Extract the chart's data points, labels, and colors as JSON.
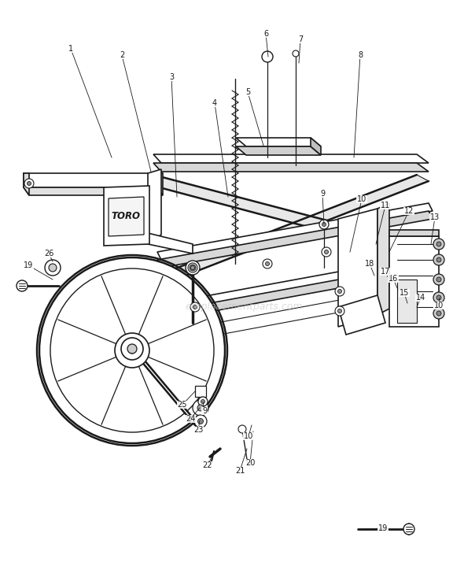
{
  "background_color": "#ffffff",
  "fig_width": 5.9,
  "fig_height": 7.43,
  "dpi": 100,
  "watermark": "ereplacementparts.com",
  "watermark_color": "#c0c0c0",
  "watermark_alpha": 0.55,
  "line_color": "#1a1a1a",
  "gray_fill": "#d8d8d8",
  "light_gray": "#eeeeee",
  "mid_gray": "#b0b0b0",
  "parts": [
    [
      "1",
      75,
      65
    ],
    [
      "2",
      148,
      73
    ],
    [
      "3",
      210,
      100
    ],
    [
      "4",
      266,
      133
    ],
    [
      "5",
      312,
      118
    ],
    [
      "6",
      333,
      45
    ],
    [
      "7",
      376,
      52
    ],
    [
      "8",
      456,
      72
    ],
    [
      "9",
      406,
      248
    ],
    [
      "10",
      456,
      255
    ],
    [
      "11",
      486,
      263
    ],
    [
      "12",
      517,
      269
    ],
    [
      "13",
      551,
      278
    ],
    [
      "14",
      533,
      377
    ],
    [
      "15",
      512,
      374
    ],
    [
      "16",
      499,
      356
    ],
    [
      "17",
      489,
      347
    ],
    [
      "18",
      469,
      336
    ],
    [
      "19",
      484,
      673
    ],
    [
      "19",
      37,
      340
    ],
    [
      "20",
      314,
      589
    ],
    [
      "21",
      302,
      600
    ],
    [
      "22",
      266,
      592
    ],
    [
      "23",
      254,
      547
    ],
    [
      "24",
      244,
      533
    ],
    [
      "25",
      234,
      515
    ],
    [
      "26",
      60,
      323
    ],
    [
      "9",
      261,
      523
    ],
    [
      "10",
      314,
      555
    ],
    [
      "10",
      556,
      390
    ]
  ]
}
